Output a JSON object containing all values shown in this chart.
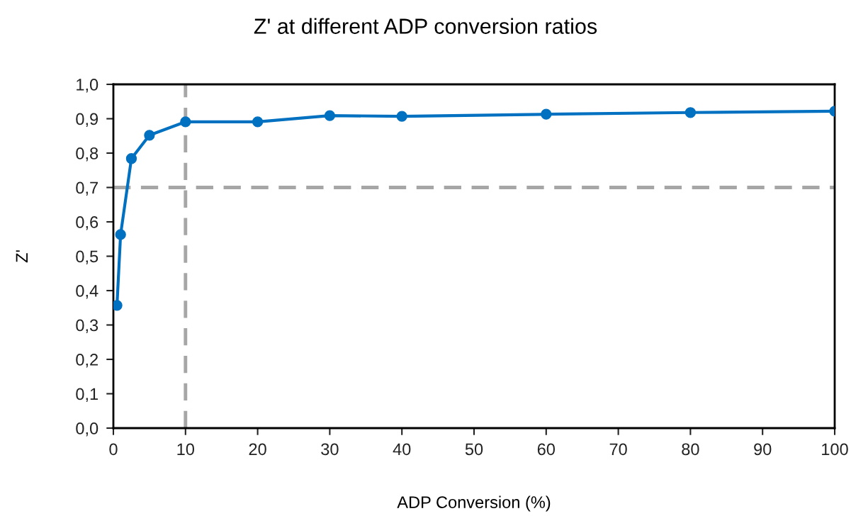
{
  "chart_data": {
    "type": "line",
    "title": "Z' at different ADP conversion ratios",
    "xlabel": "ADP Conversion (%)",
    "ylabel": "Z'",
    "x": [
      0.5,
      1,
      2.5,
      5,
      10,
      20,
      30,
      40,
      60,
      80,
      100
    ],
    "series": [
      {
        "color": "#0070c0",
        "values": [
          0.357,
          0.563,
          0.784,
          0.852,
          0.891,
          0.891,
          0.909,
          0.907,
          0.913,
          0.918,
          0.922
        ]
      }
    ],
    "xlim": [
      0,
      100
    ],
    "xticks": [
      0,
      10,
      20,
      30,
      40,
      50,
      60,
      70,
      80,
      90,
      100
    ],
    "ylim": [
      0,
      1.0
    ],
    "yticks": [
      {
        "value": 0,
        "label": "0,0"
      },
      {
        "value": 0.1,
        "label": "0,1"
      },
      {
        "value": 0.2,
        "label": "0,2"
      },
      {
        "value": 0.3,
        "label": "0,3"
      },
      {
        "value": 0.4,
        "label": "0,4"
      },
      {
        "value": 0.5,
        "label": "0,5"
      },
      {
        "value": 0.6,
        "label": "0,6"
      },
      {
        "value": 0.7,
        "label": "0,7"
      },
      {
        "value": 0.8,
        "label": "0,8"
      },
      {
        "value": 0.9,
        "label": "0,9"
      },
      {
        "value": 1.0,
        "label": "1,0"
      }
    ],
    "ref_lines": [
      {
        "axis": "y",
        "value": 0.7,
        "color": "#a6a6a6",
        "line_style": "dashed"
      },
      {
        "axis": "x",
        "value": 10,
        "color": "#a6a6a6",
        "line_style": "dashed"
      }
    ],
    "grid": false,
    "marker": "circle",
    "line_style": "solid"
  }
}
